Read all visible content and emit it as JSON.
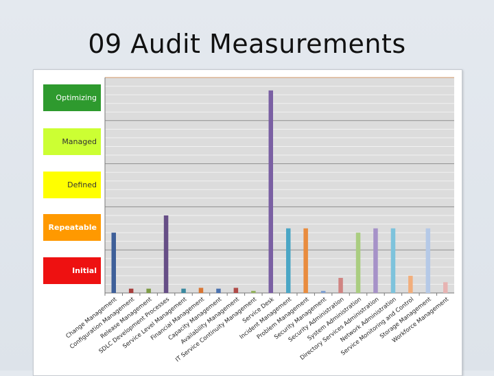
{
  "slide": {
    "title": "09 Audit Measurements"
  },
  "levels": [
    {
      "label": "Optimizing",
      "color": "#2e9a2e"
    },
    {
      "label": "Managed",
      "color": "#ccff33"
    },
    {
      "label": "Defined",
      "color": "#ffff00"
    },
    {
      "label": "Repeatable",
      "color": "#ff9900"
    },
    {
      "label": "Initial",
      "color": "#ee1111"
    }
  ],
  "chart_data": {
    "type": "bar",
    "ylim": [
      0,
      5
    ],
    "grid": true,
    "major_grid_every": 1,
    "minor_grid_step": 0.2,
    "categories": [
      "Change Management",
      "Configuration Management",
      "Release Management",
      "SDLC Development Processes",
      "Service Level Management",
      "Financial Management",
      "Capacity Management",
      "Availability Management",
      "IT Service Continuity Management",
      "Service Desk",
      "Incident Management",
      "Problem Management",
      "Security Management",
      "Security Administration",
      "System Administration",
      "Directory Services Administration",
      "Network Administration",
      "Service Monitoring and Control",
      "Storage Management",
      "Workforce Management"
    ],
    "values": [
      1.4,
      0.1,
      0.1,
      1.8,
      0.1,
      0.12,
      0.1,
      0.12,
      0.05,
      4.7,
      1.5,
      1.5,
      0.05,
      0.35,
      1.4,
      1.5,
      1.5,
      0.4,
      1.5,
      0.25
    ],
    "colors": [
      "#3e5f99",
      "#a83f3d",
      "#7d9c45",
      "#664e86",
      "#3b8aa0",
      "#d97633",
      "#4a72b0",
      "#b04a47",
      "#92b15c",
      "#7a5fa3",
      "#4ba6c5",
      "#e98c3e",
      "#7f9fd0",
      "#d08482",
      "#aacd80",
      "#a692c8",
      "#7ec3dc",
      "#f2ae7c",
      "#b5c9e7",
      "#e7b3b2"
    ]
  }
}
